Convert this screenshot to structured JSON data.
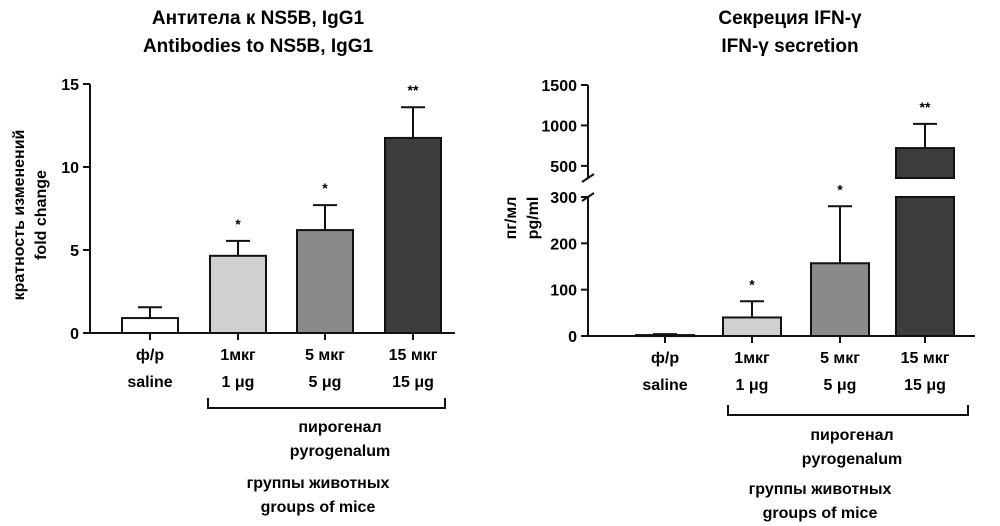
{
  "chart_data": [
    {
      "type": "bar",
      "title": "Антитела к NS5B, IgG1",
      "subtitle": "Antibodies to NS5B, IgG1",
      "ylabel": "кратность изменений",
      "ylabel_en": "fold change",
      "ylim": [
        0,
        15
      ],
      "yticks": [
        0,
        5,
        10,
        15
      ],
      "categories": [
        "ф/р",
        "1мкг",
        "5 мкг",
        "15 мкг"
      ],
      "categories_en": [
        "saline",
        "1 μg",
        "5 μg",
        "15 μg"
      ],
      "values": [
        0.9,
        4.65,
        6.2,
        11.75
      ],
      "errors": [
        0.65,
        0.9,
        1.5,
        1.85
      ],
      "significance": [
        "",
        "*",
        "*",
        "**"
      ],
      "bar_colors": [
        "#ffffff",
        "#d0d0d0",
        "#8a8a8a",
        "#3d3d3d"
      ],
      "group_label": "пирогенал",
      "group_label_en": "pyrogenalum",
      "xlabel": "группы животных",
      "xlabel_en": "groups of mice",
      "grid": false
    },
    {
      "type": "bar",
      "title": "Секреция IFN-γ",
      "subtitle": "IFN-γ secretion",
      "ylabel": "пг/мл",
      "ylabel_en": "pg/ml",
      "ylim": [
        0,
        1500
      ],
      "y_break": [
        300,
        350
      ],
      "yticks_lower": [
        0,
        100,
        200,
        300
      ],
      "yticks_upper": [
        500,
        1000,
        1500
      ],
      "categories": [
        "ф/р",
        "1мкг",
        "5 мкг",
        "15 мкг"
      ],
      "categories_en": [
        "saline",
        "1 μg",
        "5 μg",
        "15 μg"
      ],
      "values": [
        2,
        40,
        157,
        720
      ],
      "errors": [
        2,
        35,
        123,
        300
      ],
      "significance": [
        "",
        "*",
        "*",
        "**"
      ],
      "bar_colors": [
        "#ffffff",
        "#d0d0d0",
        "#8a8a8a",
        "#3d3d3d"
      ],
      "group_label": "пирогенал",
      "group_label_en": "pyrogenalum",
      "xlabel": "группы животных",
      "xlabel_en": "groups of mice",
      "grid": false
    }
  ]
}
